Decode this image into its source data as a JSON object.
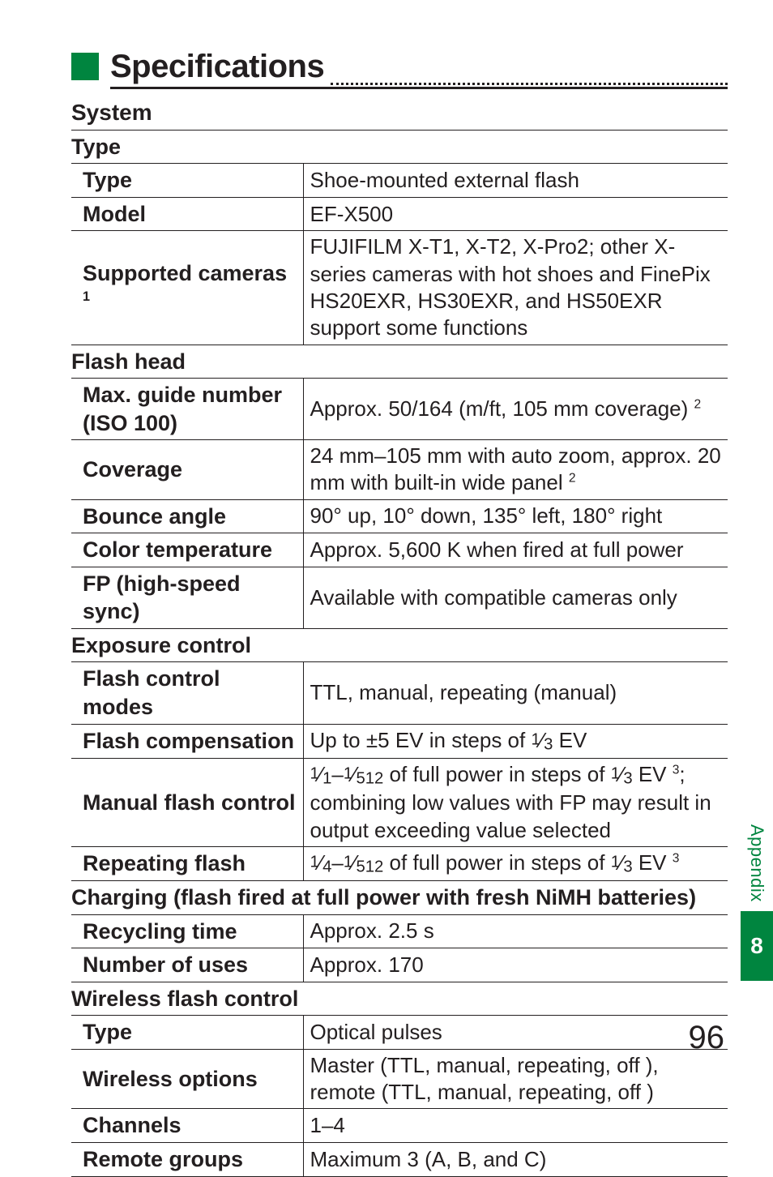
{
  "title": "Specifications",
  "sections": {
    "system": "System",
    "type_sub": "Type",
    "flash_head": "Flash head",
    "exposure": "Exposure control",
    "charging": "Charging (flash fired at full power with fresh NiMH batteries)",
    "wireless": "Wireless flash control"
  },
  "rows": {
    "type_l": "Type",
    "type_v": "Shoe-mounted external flash",
    "model_l": "Model",
    "model_v": "EF-X500",
    "supported_l": "Supported cameras",
    "supported_sup": "1",
    "supported_v": "FUJIFILM X-T1, X-T2, X-Pro2; other X-series cameras with hot shoes and FinePix HS20EXR, HS30EXR, and HS50EXR support some functions",
    "gn_l1": "Max. guide number",
    "gn_l2": "(ISO 100)",
    "gn_v": "Approx. 50/164 (m/ft, 105 mm coverage)",
    "gn_sup": "2",
    "cov_l": "Coverage",
    "cov_v": "24 mm–105 mm with auto zoom, approx. 20 mm with built-in wide panel",
    "cov_sup": "2",
    "bounce_l": "Bounce angle",
    "bounce_v": "90° up, 10° down, 135° left, 180° right",
    "ct_l": "Color temperature",
    "ct_v": "Approx. 5,600 K when fired at full power",
    "fp_l": "FP (high-speed sync)",
    "fp_v": "Available with compatible cameras only",
    "fcm_l": "Flash control modes",
    "fcm_v": "TTL, manual, repeating (manual)",
    "fcomp_l": "Flash compensation",
    "fcomp_v_pre": "Up to ±5 EV in steps of ",
    "fcomp_v_post": " EV",
    "mfc_l": "Manual flash control",
    "mfc_v_mid": " of full power in steps of ",
    "mfc_v_post": "; combining low values with FP may result in output exceeding value selected",
    "mfc_sup": "3",
    "rpt_l": "Repeating flash",
    "rpt_v_mid": " of full power in steps of ",
    "rpt_v_post": " EV",
    "rpt_sup": "3",
    "rcy_l": "Recycling time",
    "rcy_v": "Approx. 2.5 s",
    "uses_l": "Number of uses",
    "uses_v": "Approx. 170",
    "wtype_l": "Type",
    "wtype_v": "Optical pulses",
    "wopt_l": "Wireless options",
    "wopt_v": "Master (TTL, manual, repeating, off ), remote (TTL, manual, repeating, off )",
    "ch_l": "Channels",
    "ch_v": "1–4",
    "rg_l": "Remote groups",
    "rg_v": "Maximum 3 (A, B, and C)"
  },
  "fractions": {
    "one": "1",
    "three": "3",
    "four": "4",
    "five12": "512"
  },
  "side": {
    "appendix": "Appendix",
    "chapter": "8"
  },
  "page_number": "96",
  "colors": {
    "accent": "#00853f",
    "text": "#231f20"
  }
}
